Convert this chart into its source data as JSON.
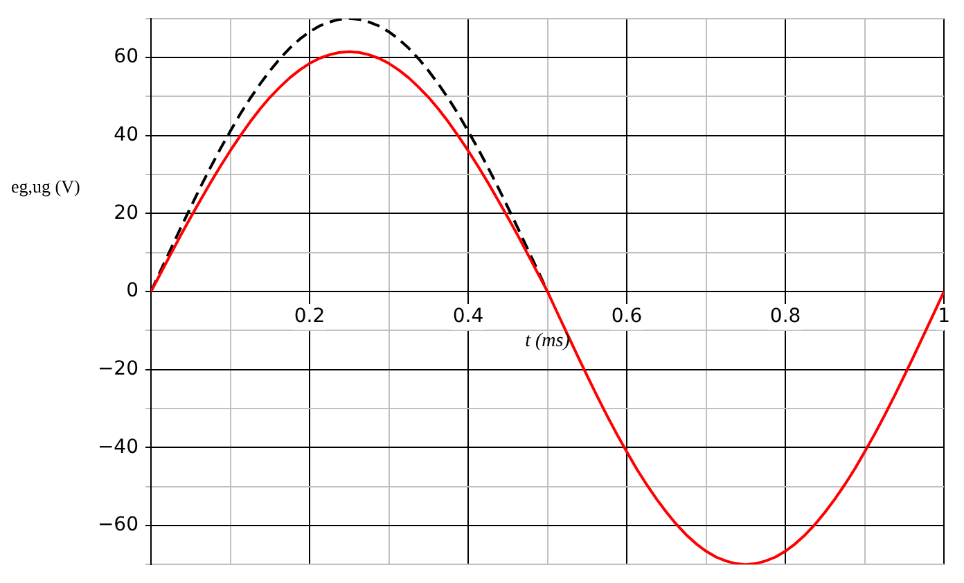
{
  "chart_data": {
    "type": "line",
    "xlabel": "t (ms)",
    "ylabel": "eg,ug (V)",
    "x": [
      0,
      0.0125,
      0.025,
      0.0375,
      0.05,
      0.0625,
      0.075,
      0.0875,
      0.1,
      0.1125,
      0.125,
      0.1375,
      0.15,
      0.1625,
      0.175,
      0.1875,
      0.2,
      0.2125,
      0.225,
      0.2375,
      0.25,
      0.2625,
      0.275,
      0.2875,
      0.3,
      0.3125,
      0.325,
      0.3375,
      0.35,
      0.3625,
      0.375,
      0.3875,
      0.4,
      0.4125,
      0.425,
      0.4375,
      0.45,
      0.4625,
      0.475,
      0.4875,
      0.5,
      0.5125,
      0.525,
      0.5375,
      0.55,
      0.5625,
      0.575,
      0.5875,
      0.6,
      0.6125,
      0.625,
      0.6375,
      0.65,
      0.6625,
      0.675,
      0.6875,
      0.7,
      0.7125,
      0.725,
      0.7375,
      0.75,
      0.7625,
      0.775,
      0.7875,
      0.8,
      0.8125,
      0.825,
      0.8375,
      0.85,
      0.8625,
      0.875,
      0.8875,
      0.9,
      0.9125,
      0.925,
      0.9375,
      0.95,
      0.9625,
      0.975,
      0.9875,
      1
    ],
    "series": [
      {
        "color": "#000000",
        "line_style": "dashed",
        "x": [
          0,
          0.0125,
          0.025,
          0.0375,
          0.05,
          0.0625,
          0.075,
          0.0875,
          0.1,
          0.1125,
          0.125,
          0.1375,
          0.15,
          0.1625,
          0.175,
          0.1875,
          0.2,
          0.2125,
          0.225,
          0.2375,
          0.25,
          0.2625,
          0.275,
          0.2875,
          0.3,
          0.3125,
          0.325,
          0.3375,
          0.35,
          0.3625,
          0.375,
          0.3875,
          0.4,
          0.4125,
          0.425,
          0.4375,
          0.45,
          0.4625,
          0.475,
          0.4875,
          0.5
        ],
        "values": [
          0,
          5.5,
          10.9,
          16.3,
          21.6,
          26.8,
          31.8,
          36.6,
          41.1,
          45.5,
          49.5,
          53.2,
          56.6,
          59.7,
          62.4,
          64.7,
          66.6,
          68.1,
          69.1,
          69.8,
          70,
          69.8,
          69.1,
          68.1,
          66.6,
          64.7,
          62.4,
          59.7,
          56.6,
          53.2,
          49.5,
          45.5,
          41.1,
          36.6,
          31.8,
          26.8,
          21.6,
          16.3,
          10.9,
          5.5,
          0
        ]
      },
      {
        "color": "#ff0000",
        "line_style": "solid",
        "values": [
          0,
          4.8,
          9.6,
          14.4,
          19.0,
          23.5,
          27.9,
          32.1,
          36.1,
          39.9,
          43.5,
          46.8,
          49.8,
          52.4,
          54.8,
          56.8,
          58.5,
          59.8,
          60.7,
          61.3,
          61.5,
          61.3,
          60.7,
          59.8,
          58.5,
          56.8,
          54.8,
          52.4,
          49.8,
          46.8,
          43.5,
          39.9,
          36.1,
          32.1,
          27.9,
          23.5,
          19.0,
          14.4,
          9.6,
          4.8,
          0,
          -5.5,
          -10.9,
          -16.3,
          -21.6,
          -26.8,
          -31.8,
          -36.6,
          -41.1,
          -45.5,
          -49.5,
          -53.2,
          -56.6,
          -59.7,
          -62.4,
          -64.7,
          -66.6,
          -68.1,
          -69.1,
          -69.8,
          -70,
          -69.8,
          -69.1,
          -68.1,
          -66.6,
          -64.7,
          -62.4,
          -59.7,
          -56.6,
          -53.2,
          -49.5,
          -45.5,
          -41.1,
          -36.6,
          -31.8,
          -26.8,
          -21.6,
          -16.3,
          -10.9,
          -5.5,
          0
        ]
      }
    ],
    "xlim": [
      0,
      1
    ],
    "xticks": [
      {
        "value": 0.1,
        "label": null
      },
      0.2,
      {
        "value": 0.3,
        "label": null
      },
      0.4,
      {
        "value": 0.5,
        "label": null
      },
      0.6,
      {
        "value": 0.7,
        "label": null
      },
      0.8,
      {
        "value": 0.9,
        "label": null
      },
      1
    ],
    "ylim": [
      -70,
      70
    ],
    "yticks": [
      {
        "value": -70,
        "label": null
      },
      {
        "value": -60,
        "label": "−60"
      },
      {
        "value": -50,
        "label": null
      },
      {
        "value": -40,
        "label": "−40"
      },
      {
        "value": -30,
        "label": null
      },
      {
        "value": -20,
        "label": "−20"
      },
      {
        "value": -10,
        "label": null
      },
      0,
      {
        "value": 10,
        "label": null
      },
      20,
      {
        "value": 30,
        "label": null
      },
      40,
      {
        "value": 50,
        "label": null
      },
      60,
      {
        "value": 70,
        "label": null
      }
    ],
    "grid": true,
    "marker": "none"
  }
}
